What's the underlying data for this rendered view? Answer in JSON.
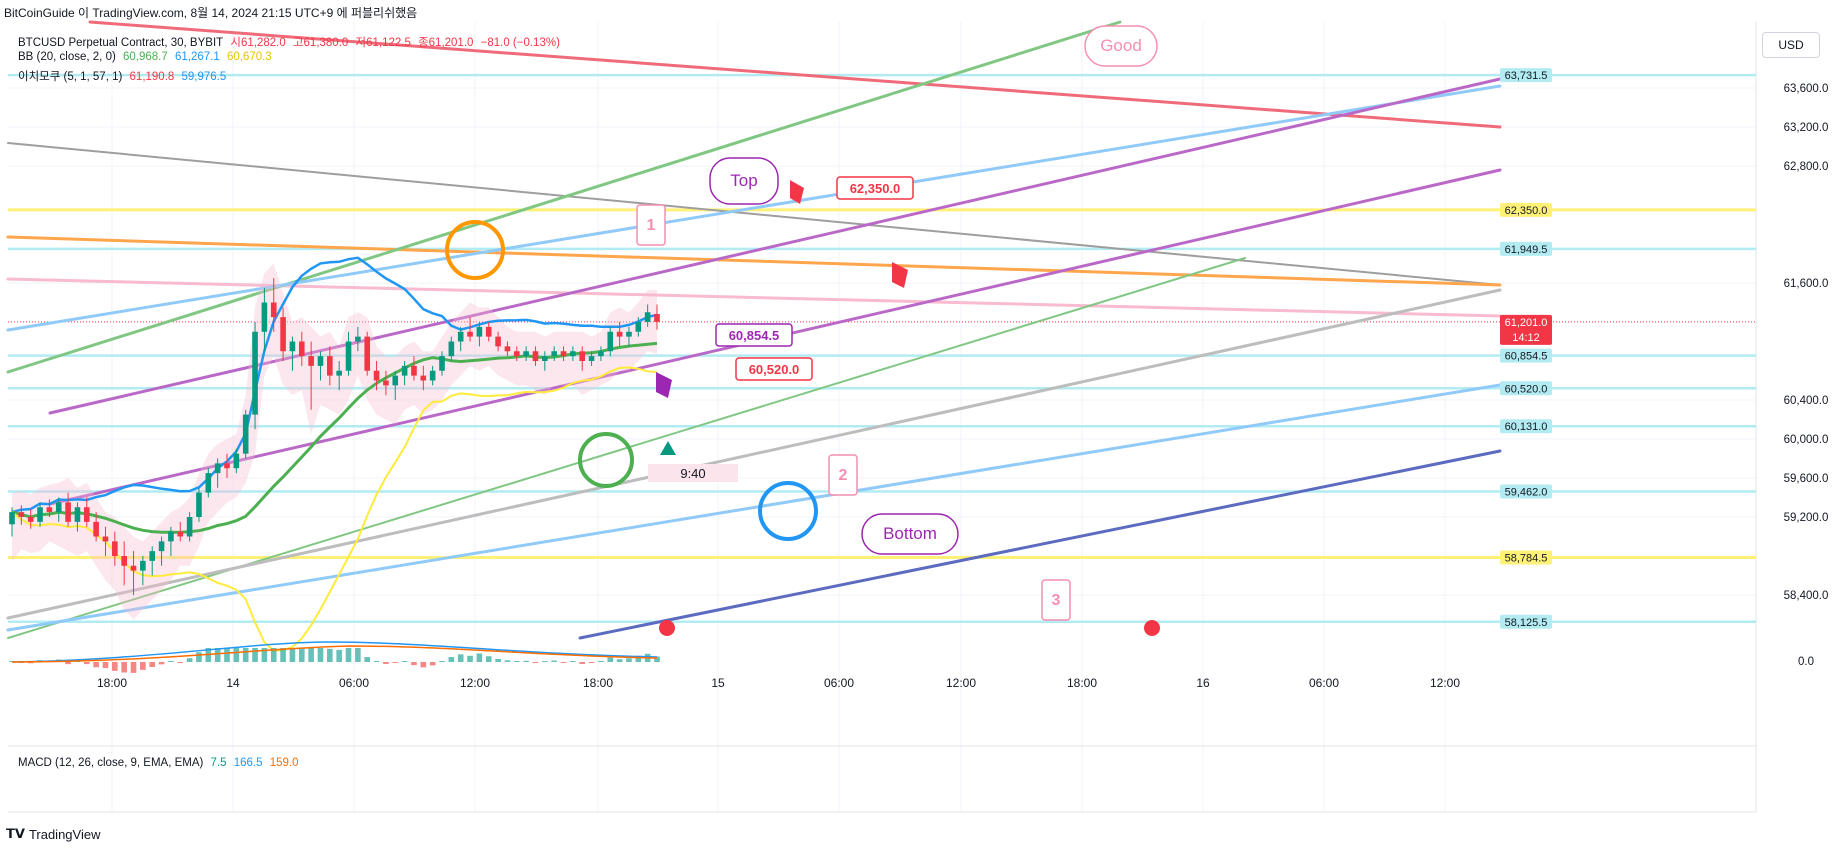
{
  "caption": "BitCoinGuide 이 TradingView.com, 8월 14, 2024 21:15 UTC+9 에 퍼블리쉬했음",
  "legend": {
    "symbol": "BTCUSD Perpetual Contract, 30, BYBIT",
    "ohlc": {
      "o_label": "시",
      "o": "61,282.0",
      "h_label": "고",
      "h": "61,380.0",
      "l_label": "저",
      "l": "61,122.5",
      "c_label": "종",
      "c": "61,201.0",
      "change": "−81.0 (−0.13%)"
    },
    "bb": {
      "label": "BB (20, close, 2, 0)",
      "mid": "60,968.7",
      "upper": "61,267.1",
      "lower": "60,670.3"
    },
    "ichimoku": {
      "label": "이치모쿠 (5, 1, 57, 1)",
      "v1": "61,190.8",
      "v2": "59,976.5"
    },
    "macd": {
      "label": "MACD (12, 26, close, 9, EMA, EMA)",
      "v1": "7.5",
      "v2": "166.5",
      "v3": "159.0"
    }
  },
  "usd_label": "USD",
  "footer_brand": "TradingView",
  "colors": {
    "up": "#089981",
    "down": "#f23645",
    "bb_mid": "#4caf50",
    "bb_upper": "#2196f3",
    "ichimoku_lower": "#ffeb3b"
  },
  "chart_data": {
    "type": "candlestick",
    "title": "BTCUSD Perpetual Contract, 30, BYBIT",
    "y_ticks": [
      "63,600.0",
      "63,200.0",
      "62,800.0",
      "61,600.0",
      "60,400.0",
      "60,000.0",
      "59,600.0",
      "59,200.0",
      "58,400.0"
    ],
    "macd_tick": "0.0",
    "x_ticks": [
      "18:00",
      "14",
      "06:00",
      "12:00",
      "18:00",
      "15",
      "06:00",
      "12:00",
      "18:00",
      "16",
      "06:00",
      "12:00"
    ],
    "price_labels": [
      {
        "value": 63731.5,
        "text": "63,731.5",
        "color": "#b2ebf2",
        "text_color": "#131722"
      },
      {
        "value": 62350.0,
        "text": "62,350.0",
        "color": "#fff176",
        "text_color": "#131722"
      },
      {
        "value": 61949.5,
        "text": "61,949.5",
        "color": "#b2ebf2",
        "text_color": "#131722"
      },
      {
        "value": 61201.0,
        "text": "61,201.0",
        "color": "#f23645",
        "text_color": "#ffffff",
        "extra": "14:12"
      },
      {
        "value": 60854.5,
        "text": "60,854.5",
        "color": "#b2ebf2",
        "text_color": "#131722"
      },
      {
        "value": 60520.0,
        "text": "60,520.0",
        "color": "#b2ebf2",
        "text_color": "#131722"
      },
      {
        "value": 60131.0,
        "text": "60,131.0",
        "color": "#b2ebf2",
        "text_color": "#131722"
      },
      {
        "value": 59462.0,
        "text": "59,462.0",
        "color": "#b2ebf2",
        "text_color": "#131722"
      },
      {
        "value": 58784.5,
        "text": "58,784.5",
        "color": "#fff176",
        "text_color": "#131722"
      },
      {
        "value": 58125.5,
        "text": "58,125.5",
        "color": "#b2ebf2",
        "text_color": "#131722"
      }
    ],
    "callouts": [
      {
        "text": "Good",
        "color": "#f48fb1"
      },
      {
        "text": "Top",
        "color": "#9c27b0"
      },
      {
        "text": "Bottom",
        "color": "#9c27b0"
      },
      {
        "text": "62,350.0",
        "color": "#f23645"
      },
      {
        "text": "60,854.5",
        "color": "#9c27b0"
      },
      {
        "text": "60,520.0",
        "color": "#f23645"
      },
      {
        "text": "1",
        "color": "#f48fb1"
      },
      {
        "text": "2",
        "color": "#f48fb1"
      },
      {
        "text": "3",
        "color": "#f48fb1"
      },
      {
        "text": "9:40",
        "color": "#131722"
      }
    ],
    "candles": [
      [
        59125,
        59300,
        59000,
        59250
      ],
      [
        59250,
        59320,
        59120,
        59200
      ],
      [
        59200,
        59280,
        59080,
        59150
      ],
      [
        59150,
        59350,
        59100,
        59300
      ],
      [
        59300,
        59380,
        59200,
        59250
      ],
      [
        59250,
        59400,
        59150,
        59350
      ],
      [
        59350,
        59450,
        59100,
        59150
      ],
      [
        59150,
        59350,
        59050,
        59300
      ],
      [
        59300,
        59400,
        59100,
        59150
      ],
      [
        59150,
        59250,
        58950,
        59000
      ],
      [
        59000,
        59100,
        58800,
        58950
      ],
      [
        58950,
        59050,
        58700,
        58800
      ],
      [
        58800,
        58950,
        58500,
        58700
      ],
      [
        58700,
        58850,
        58400,
        58650
      ],
      [
        58650,
        58800,
        58500,
        58750
      ],
      [
        58750,
        58900,
        58600,
        58850
      ],
      [
        58850,
        59000,
        58700,
        58950
      ],
      [
        58950,
        59100,
        58800,
        59050
      ],
      [
        59050,
        59150,
        58950,
        59000
      ],
      [
        59000,
        59250,
        58950,
        59200
      ],
      [
        59200,
        59500,
        59150,
        59450
      ],
      [
        59450,
        59700,
        59400,
        59650
      ],
      [
        59650,
        59800,
        59500,
        59750
      ],
      [
        59750,
        59850,
        59600,
        59700
      ],
      [
        59700,
        59900,
        59650,
        59850
      ],
      [
        59850,
        60300,
        59800,
        60250
      ],
      [
        60250,
        61200,
        60100,
        61100
      ],
      [
        61100,
        61550,
        60900,
        61400
      ],
      [
        61400,
        61650,
        61100,
        61250
      ],
      [
        61250,
        61350,
        60800,
        60900
      ],
      [
        60900,
        61050,
        60700,
        61000
      ],
      [
        61000,
        61100,
        60750,
        60850
      ],
      [
        60850,
        61000,
        60300,
        60750
      ],
      [
        60750,
        60900,
        60600,
        60850
      ],
      [
        60850,
        60950,
        60550,
        60650
      ],
      [
        60650,
        60800,
        60500,
        60700
      ],
      [
        60700,
        61100,
        60650,
        61000
      ],
      [
        61000,
        61150,
        60900,
        61050
      ],
      [
        61050,
        61100,
        60650,
        60700
      ],
      [
        60700,
        60800,
        60500,
        60600
      ],
      [
        60600,
        60700,
        60450,
        60550
      ],
      [
        60550,
        60700,
        60400,
        60650
      ],
      [
        60650,
        60800,
        60550,
        60750
      ],
      [
        60750,
        60850,
        60600,
        60650
      ],
      [
        60650,
        60750,
        60500,
        60600
      ],
      [
        60600,
        60750,
        60550,
        60700
      ],
      [
        60700,
        60900,
        60650,
        60850
      ],
      [
        60850,
        61050,
        60800,
        61000
      ],
      [
        61000,
        61150,
        60900,
        61100
      ],
      [
        61100,
        61250,
        61000,
        61050
      ],
      [
        61050,
        61200,
        60950,
        61150
      ],
      [
        61150,
        61200,
        61000,
        61050
      ],
      [
        61050,
        61100,
        60900,
        60950
      ],
      [
        60950,
        61000,
        60850,
        60900
      ],
      [
        60900,
        60950,
        60800,
        60850
      ],
      [
        60850,
        60950,
        60800,
        60900
      ],
      [
        60900,
        60950,
        60750,
        60800
      ],
      [
        60800,
        60900,
        60700,
        60850
      ],
      [
        60850,
        60950,
        60800,
        60900
      ],
      [
        60900,
        60950,
        60800,
        60850
      ],
      [
        60850,
        60950,
        60800,
        60900
      ],
      [
        60900,
        60950,
        60700,
        60800
      ],
      [
        60800,
        60900,
        60750,
        60850
      ],
      [
        60850,
        60950,
        60800,
        60900
      ],
      [
        60900,
        61150,
        60850,
        61100
      ],
      [
        61100,
        61200,
        60950,
        61050
      ],
      [
        61050,
        61150,
        60950,
        61100
      ],
      [
        61100,
        61250,
        61050,
        61200
      ],
      [
        61200,
        61380,
        61150,
        61300
      ],
      [
        61282,
        61380,
        61122,
        61201
      ]
    ]
  }
}
